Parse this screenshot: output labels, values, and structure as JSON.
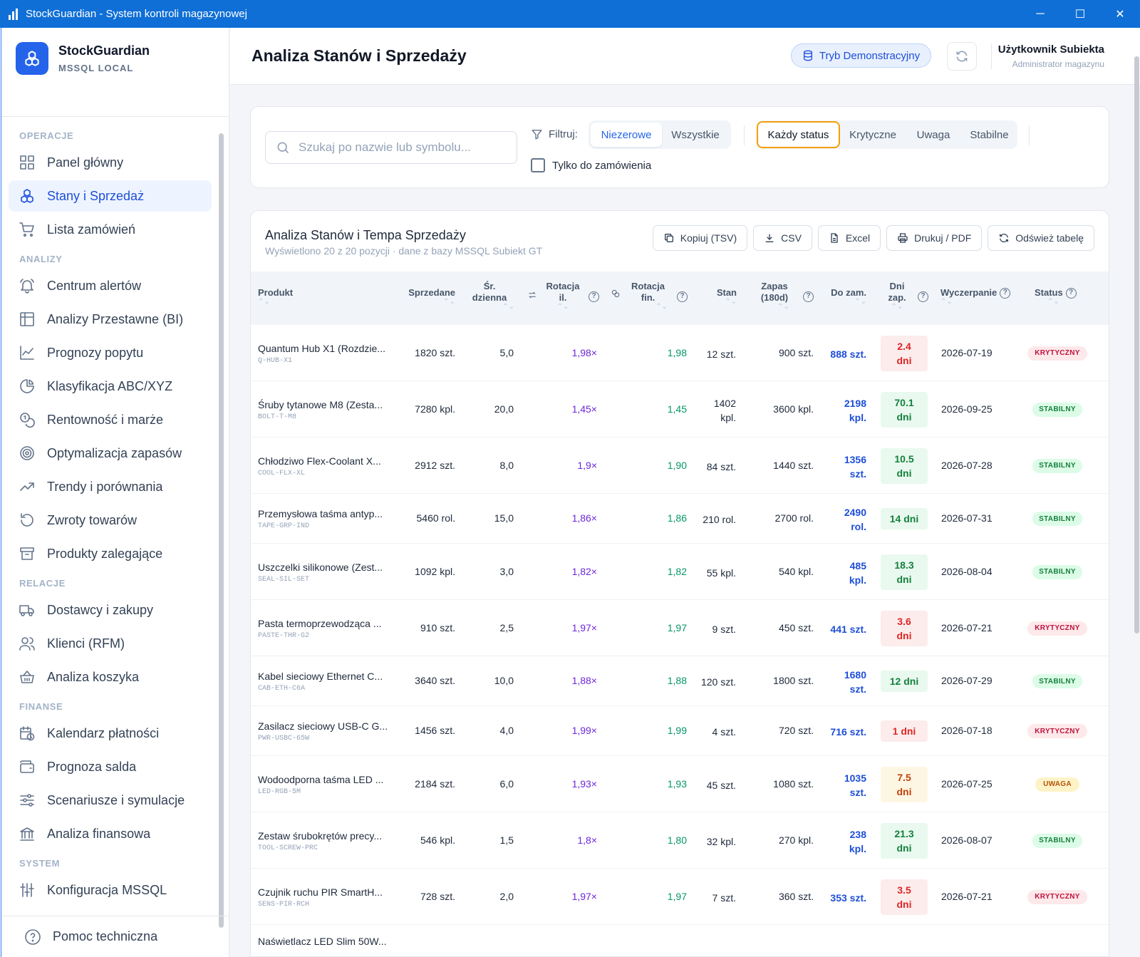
{
  "window": {
    "title": "StockGuardian - System kontroli magazynowej",
    "minimize": "─",
    "maximize": "☐",
    "close": "✕"
  },
  "brand": {
    "name": "StockGuardian",
    "subtitle": "MSSQL LOCAL"
  },
  "nav": {
    "sections": [
      {
        "label": "OPERACJE",
        "items": [
          {
            "label": "Panel główny",
            "icon": "dashboard-grid-icon"
          },
          {
            "label": "Stany i Sprzedaż",
            "icon": "cubes-icon",
            "active": true
          },
          {
            "label": "Lista zamówień",
            "icon": "cart-icon"
          }
        ]
      },
      {
        "label": "ANALIZY",
        "items": [
          {
            "label": "Centrum alertów",
            "icon": "bell-icon"
          },
          {
            "label": "Analizy Przestawne (BI)",
            "icon": "table-icon"
          },
          {
            "label": "Prognozy popytu",
            "icon": "line-chart-icon"
          },
          {
            "label": "Klasyfikacja ABC/XYZ",
            "icon": "pie-chart-icon"
          },
          {
            "label": "Rentowność i marże",
            "icon": "coins-icon"
          },
          {
            "label": "Optymalizacja zapasów",
            "icon": "target-icon"
          },
          {
            "label": "Trendy i porównania",
            "icon": "trend-up-icon"
          },
          {
            "label": "Zwroty towarów",
            "icon": "undo-icon"
          },
          {
            "label": "Produkty zalegające",
            "icon": "archive-icon"
          }
        ]
      },
      {
        "label": "RELACJE",
        "items": [
          {
            "label": "Dostawcy i zakupy",
            "icon": "truck-icon"
          },
          {
            "label": "Klienci (RFM)",
            "icon": "users-icon"
          },
          {
            "label": "Analiza koszyka",
            "icon": "basket-icon"
          }
        ]
      },
      {
        "label": "FINANSE",
        "items": [
          {
            "label": "Kalendarz płatności",
            "icon": "calendar-clock-icon"
          },
          {
            "label": "Prognoza salda",
            "icon": "wallet-icon"
          },
          {
            "label": "Scenariusze i symulacje",
            "icon": "sliders-icon"
          },
          {
            "label": "Analiza finansowa",
            "icon": "bank-icon"
          }
        ]
      },
      {
        "label": "SYSTEM",
        "items": [
          {
            "label": "Konfiguracja MSSQL",
            "icon": "settings-sliders-icon"
          }
        ]
      }
    ],
    "help": "Pomoc techniczna"
  },
  "header": {
    "title": "Analiza Stanów i Sprzedaży",
    "demo": "Tryb Demonstracyjny",
    "user_name": "Użytkownik Subiekta",
    "user_role": "Administrator magazynu"
  },
  "filters": {
    "search_placeholder": "Szukaj po nazwie lub symbolu...",
    "filter_label": "Filtruj:",
    "seg_mode": [
      "Niezerowe",
      "Wszystkie"
    ],
    "seg_status": [
      "Każdy status",
      "Krytyczne",
      "Uwaga",
      "Stabilne"
    ],
    "only_order": "Tylko do zamówienia"
  },
  "table": {
    "title": "Analiza Stanów i Tempa Sprzedaży",
    "subtitle": "Wyświetlono 20 z 20 pozycji · dane z bazy MSSQL Subiekt GT",
    "buttons": [
      "Kopiuj (TSV)",
      "CSV",
      "Excel",
      "Drukuj / PDF",
      "Odśwież tabelę"
    ],
    "columns": {
      "produkt": "Produkt",
      "sprzedane": "Sprzedane",
      "sr1": "Śr.",
      "sr2": "dzienna",
      "rotil1": "Rotacja",
      "rotil2": "il.",
      "rotfin1": "Rotacja",
      "rotfin2": "fin.",
      "stan": "Stan",
      "zapas1": "Zapas",
      "zapas2": "(180d)",
      "dozam": "Do zam.",
      "dni1": "Dni",
      "dni2": "zap.",
      "wyczerpanie": "Wyczerpanie",
      "status": "Status"
    },
    "rows": [
      {
        "name": "Quantum Hub X1 (Rozdzie...",
        "sym": "Q-HUB-X1",
        "sold": "1820 szt.",
        "avg": "5,0",
        "rotil": "1,98×",
        "rotfin": "1,98",
        "stan": [
          "12 szt."
        ],
        "zapas": "900 szt.",
        "dozam": [
          "888 szt."
        ],
        "dni": [
          "2.4",
          "dni"
        ],
        "dni_tone": "red",
        "date": "2026-07-19",
        "status": "KRYTYCZNY",
        "tone": "red"
      },
      {
        "name": "Śruby tytanowe M8 (Zesta...",
        "sym": "BOLT-T-M8",
        "sold": "7280 kpl.",
        "avg": "20,0",
        "rotil": "1,45×",
        "rotfin": "1,45",
        "stan": [
          "1402",
          "kpl."
        ],
        "zapas": "3600 kpl.",
        "dozam": [
          "2198",
          "kpl."
        ],
        "dni": [
          "70.1",
          "dni"
        ],
        "dni_tone": "green",
        "date": "2026-09-25",
        "status": "STABILNY",
        "tone": "green"
      },
      {
        "name": "Chłodziwo Flex-Coolant X...",
        "sym": "COOL-FLX-XL",
        "sold": "2912 szt.",
        "avg": "8,0",
        "rotil": "1,9×",
        "rotfin": "1,90",
        "stan": [
          "84 szt."
        ],
        "zapas": "1440 szt.",
        "dozam": [
          "1356",
          "szt."
        ],
        "dni": [
          "10.5",
          "dni"
        ],
        "dni_tone": "green",
        "date": "2026-07-28",
        "status": "STABILNY",
        "tone": "green"
      },
      {
        "name": "Przemysłowa taśma antyp...",
        "sym": "TAPE-GRP-IND",
        "sold": "5460 rol.",
        "avg": "15,0",
        "rotil": "1,86×",
        "rotfin": "1,86",
        "stan": [
          "210 rol."
        ],
        "zapas": "2700 rol.",
        "dozam": [
          "2490",
          "rol."
        ],
        "dni": [
          "14 dni"
        ],
        "dni_tone": "green",
        "date": "2026-07-31",
        "status": "STABILNY",
        "tone": "green"
      },
      {
        "name": "Uszczelki silikonowe (Zest...",
        "sym": "SEAL-SIL-SET",
        "sold": "1092 kpl.",
        "avg": "3,0",
        "rotil": "1,82×",
        "rotfin": "1,82",
        "stan": [
          "55 kpl."
        ],
        "zapas": "540 kpl.",
        "dozam": [
          "485",
          "kpl."
        ],
        "dni": [
          "18.3",
          "dni"
        ],
        "dni_tone": "green",
        "date": "2026-08-04",
        "status": "STABILNY",
        "tone": "green"
      },
      {
        "name": "Pasta termoprzewodząca ...",
        "sym": "PASTE-THR-G2",
        "sold": "910 szt.",
        "avg": "2,5",
        "rotil": "1,97×",
        "rotfin": "1,97",
        "stan": [
          "9 szt."
        ],
        "zapas": "450 szt.",
        "dozam": [
          "441 szt."
        ],
        "dni": [
          "3.6",
          "dni"
        ],
        "dni_tone": "red",
        "date": "2026-07-21",
        "status": "KRYTYCZNY",
        "tone": "red"
      },
      {
        "name": "Kabel sieciowy Ethernet C...",
        "sym": "CAB-ETH-C6A",
        "sold": "3640 szt.",
        "avg": "10,0",
        "rotil": "1,88×",
        "rotfin": "1,88",
        "stan": [
          "120 szt."
        ],
        "zapas": "1800 szt.",
        "dozam": [
          "1680",
          "szt."
        ],
        "dni": [
          "12 dni"
        ],
        "dni_tone": "green",
        "date": "2026-07-29",
        "status": "STABILNY",
        "tone": "green"
      },
      {
        "name": "Zasilacz sieciowy USB-C G...",
        "sym": "PWR-USBC-65W",
        "sold": "1456 szt.",
        "avg": "4,0",
        "rotil": "1,99×",
        "rotfin": "1,99",
        "stan": [
          "4 szt."
        ],
        "zapas": "720 szt.",
        "dozam": [
          "716 szt."
        ],
        "dni": [
          "1 dni"
        ],
        "dni_tone": "red",
        "date": "2026-07-18",
        "status": "KRYTYCZNY",
        "tone": "red"
      },
      {
        "name": "Wodoodporna taśma LED ...",
        "sym": "LED-RGB-5M",
        "sold": "2184 szt.",
        "avg": "6,0",
        "rotil": "1,93×",
        "rotfin": "1,93",
        "stan": [
          "45 szt."
        ],
        "zapas": "1080 szt.",
        "dozam": [
          "1035",
          "szt."
        ],
        "dni": [
          "7.5",
          "dni"
        ],
        "dni_tone": "amber",
        "date": "2026-07-25",
        "status": "UWAGA",
        "tone": "amber"
      },
      {
        "name": "Zestaw śrubokrętów precy...",
        "sym": "TOOL-SCREW-PRC",
        "sold": "546 kpl.",
        "avg": "1,5",
        "rotil": "1,8×",
        "rotfin": "1,80",
        "stan": [
          "32 kpl."
        ],
        "zapas": "270 kpl.",
        "dozam": [
          "238",
          "kpl."
        ],
        "dni": [
          "21.3",
          "dni"
        ],
        "dni_tone": "green",
        "date": "2026-08-07",
        "status": "STABILNY",
        "tone": "green"
      },
      {
        "name": "Czujnik ruchu PIR SmartH...",
        "sym": "SENS-PIR-RCH",
        "sold": "728 szt.",
        "avg": "2,0",
        "rotil": "1,97×",
        "rotfin": "1,97",
        "stan": [
          "7 szt."
        ],
        "zapas": "360 szt.",
        "dozam": [
          "353 szt."
        ],
        "dni": [
          "3.5",
          "dni"
        ],
        "dni_tone": "red",
        "date": "2026-07-21",
        "status": "KRYTYCZNY",
        "tone": "red"
      },
      {
        "name": "Naświetlacz LED Slim 50W...",
        "sym": "",
        "sold": "",
        "avg": "",
        "rotil": "",
        "rotfin": "",
        "stan": [
          ""
        ],
        "zapas": "",
        "dozam": [
          ""
        ],
        "dni": [
          ""
        ],
        "dni_tone": "green",
        "date": "",
        "status": "",
        "tone": "green"
      }
    ]
  }
}
